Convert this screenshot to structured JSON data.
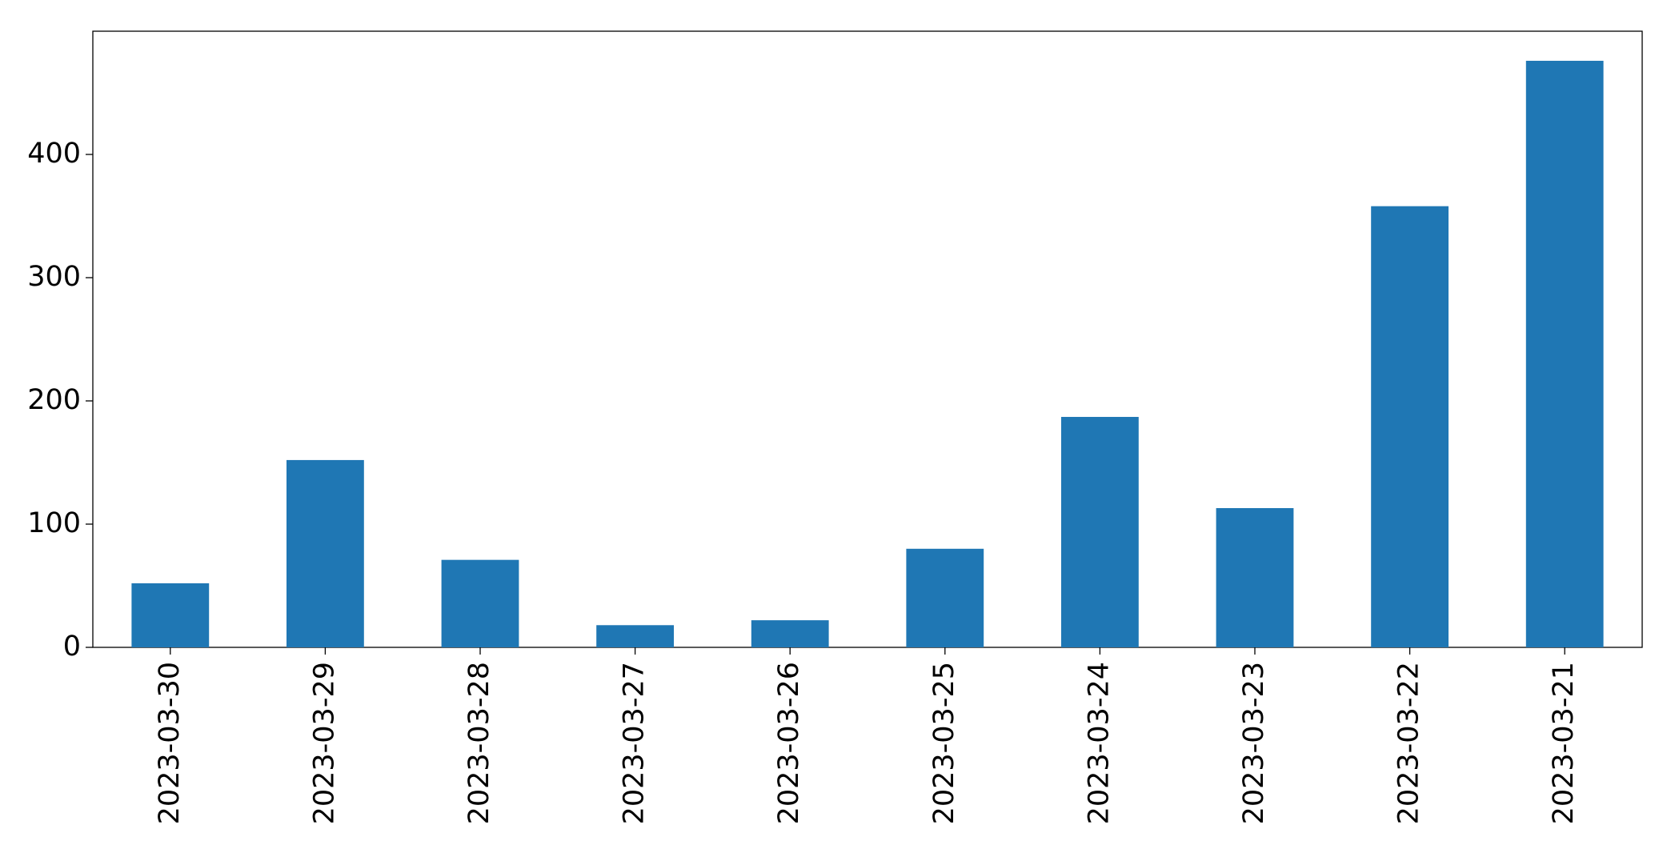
{
  "chart_data": {
    "type": "bar",
    "categories": [
      "2023-03-30",
      "2023-03-29",
      "2023-03-28",
      "2023-03-27",
      "2023-03-26",
      "2023-03-25",
      "2023-03-24",
      "2023-03-23",
      "2023-03-22",
      "2023-03-21"
    ],
    "values": [
      52,
      152,
      71,
      18,
      22,
      80,
      187,
      113,
      358,
      476
    ],
    "color": "#1f77b4",
    "ylim": [
      0,
      500
    ],
    "yticks": [
      0,
      100,
      200,
      300,
      400
    ],
    "grid": false
  }
}
